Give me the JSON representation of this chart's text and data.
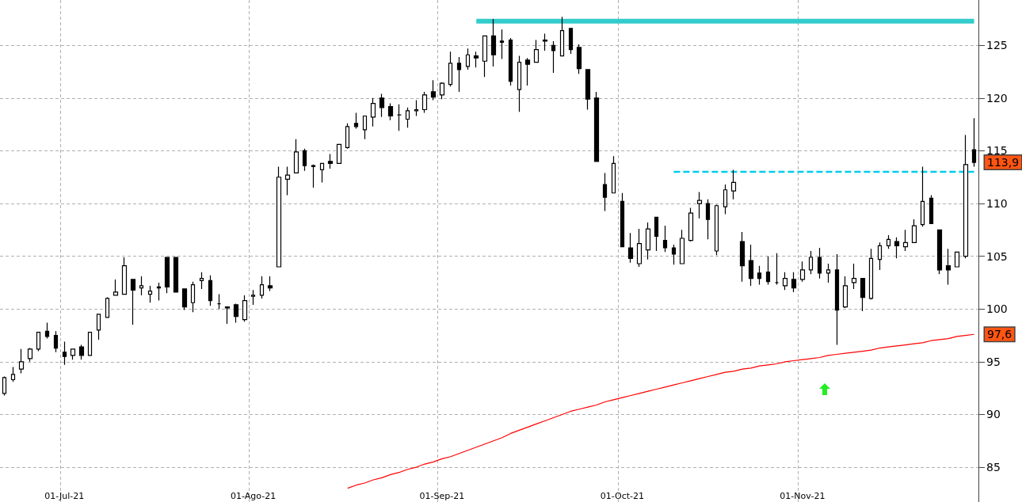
{
  "chart_data": {
    "type": "candlestick",
    "categories": [
      null,
      null,
      null,
      null,
      null,
      null,
      null,
      "01-Jul-21",
      null,
      null,
      null,
      null,
      null,
      null,
      null,
      null,
      null,
      null,
      null,
      null,
      null,
      null,
      null,
      null,
      null,
      null,
      null,
      null,
      null,
      "01-Ago-21",
      null,
      null,
      null,
      null,
      null,
      null,
      null,
      null,
      null,
      null,
      null,
      null,
      null,
      null,
      null,
      null,
      null,
      null,
      null,
      null,
      null,
      "01-Sep-21",
      null,
      null,
      null,
      null,
      null,
      null,
      null,
      null,
      null,
      null,
      null,
      null,
      null,
      null,
      null,
      null,
      null,
      null,
      null,
      null,
      "01-Oct-21",
      null,
      null,
      null,
      null,
      null,
      null,
      null,
      null,
      null,
      null,
      null,
      null,
      null,
      null,
      null,
      null,
      null,
      null,
      null,
      null,
      "01-Nov-21",
      null,
      null,
      null,
      null,
      null,
      null,
      null,
      null,
      null,
      null,
      null,
      null,
      null,
      null,
      null,
      null,
      null,
      null,
      null,
      null
    ],
    "ohlc": [
      [
        92.0,
        93.6,
        91.8,
        93.5
      ],
      [
        93.3,
        94.5,
        93.1,
        93.8
      ],
      [
        94.3,
        96.2,
        93.9,
        95.0
      ],
      [
        95.3,
        96.3,
        95.0,
        96.2
      ],
      [
        96.2,
        97.8,
        96.0,
        97.8
      ],
      [
        97.9,
        98.7,
        97.2,
        97.4
      ],
      [
        97.5,
        97.9,
        95.9,
        96.3
      ],
      [
        95.9,
        96.9,
        94.7,
        95.5
      ],
      [
        95.6,
        96.2,
        95.2,
        96.2
      ],
      [
        96.4,
        96.6,
        95.2,
        95.6
      ],
      [
        95.6,
        97.8,
        95.6,
        97.8
      ],
      [
        98.0,
        99.5,
        97.1,
        99.5
      ],
      [
        99.2,
        101.1,
        99.2,
        101.0
      ],
      [
        101.3,
        102.8,
        101.3,
        101.6
      ],
      [
        101.4,
        104.9,
        101.4,
        104.1
      ],
      [
        102.8,
        102.8,
        98.5,
        101.8
      ],
      [
        102.0,
        103.1,
        101.3,
        102.2
      ],
      [
        101.4,
        102.2,
        100.6,
        101.7
      ],
      [
        102.0,
        102.5,
        100.8,
        102.1
      ],
      [
        104.9,
        104.9,
        101.5,
        102.1
      ],
      [
        104.9,
        104.9,
        101.6,
        101.6
      ],
      [
        101.9,
        101.9,
        99.9,
        100.2
      ],
      [
        100.6,
        102.6,
        99.7,
        102.3
      ],
      [
        102.7,
        103.5,
        101.9,
        102.9
      ],
      [
        102.7,
        103.2,
        100.3,
        100.8
      ],
      [
        100.5,
        101.4,
        100.0,
        100.5
      ],
      [
        100.2,
        100.2,
        98.6,
        100.1
      ],
      [
        100.4,
        100.5,
        98.7,
        99.3
      ],
      [
        99.0,
        101.3,
        98.8,
        100.8
      ],
      [
        101.2,
        101.8,
        100.4,
        101.3
      ],
      [
        101.3,
        103.1,
        101.0,
        102.3
      ],
      [
        102.2,
        103.1,
        101.7,
        102.0
      ],
      [
        104.0,
        113.5,
        104.0,
        112.5
      ],
      [
        112.3,
        113.5,
        110.8,
        112.7
      ],
      [
        112.9,
        116.1,
        112.9,
        114.9
      ],
      [
        115.0,
        115.2,
        113.1,
        113.6
      ],
      [
        113.6,
        113.7,
        111.5,
        113.5
      ],
      [
        113.2,
        113.8,
        112.0,
        113.8
      ],
      [
        114.0,
        114.7,
        113.3,
        113.8
      ],
      [
        113.8,
        115.6,
        113.8,
        115.6
      ],
      [
        115.3,
        117.6,
        115.2,
        117.3
      ],
      [
        117.6,
        118.6,
        117.1,
        117.3
      ],
      [
        117.0,
        118.3,
        116.1,
        118.3
      ],
      [
        118.2,
        120.0,
        117.3,
        119.5
      ],
      [
        120.0,
        120.4,
        118.2,
        119.1
      ],
      [
        119.2,
        119.5,
        117.9,
        118.3
      ],
      [
        118.4,
        119.4,
        116.9,
        118.4
      ],
      [
        118.0,
        119.1,
        117.2,
        118.8
      ],
      [
        118.8,
        119.8,
        118.3,
        118.9
      ],
      [
        118.9,
        120.6,
        118.6,
        120.3
      ],
      [
        120.6,
        121.7,
        119.8,
        120.1
      ],
      [
        120.3,
        121.5,
        119.9,
        121.4
      ],
      [
        121.3,
        124.4,
        121.1,
        123.3
      ],
      [
        123.3,
        123.9,
        120.6,
        122.7
      ],
      [
        123.0,
        124.7,
        122.7,
        124.1
      ],
      [
        124.0,
        124.4,
        122.9,
        123.8
      ],
      [
        123.5,
        125.9,
        122.0,
        125.9
      ],
      [
        125.9,
        127.5,
        123.0,
        124.1
      ],
      [
        125.4,
        126.5,
        123.7,
        125.3
      ],
      [
        125.5,
        125.7,
        121.2,
        121.6
      ],
      [
        120.8,
        124.0,
        118.7,
        123.4
      ],
      [
        123.6,
        123.8,
        121.2,
        123.2
      ],
      [
        123.4,
        125.5,
        123.4,
        124.6
      ],
      [
        125.4,
        126.1,
        124.5,
        125.5
      ],
      [
        125.0,
        125.4,
        122.4,
        124.5
      ],
      [
        124.0,
        127.7,
        124.0,
        126.4
      ],
      [
        126.6,
        126.6,
        124.2,
        124.6
      ],
      [
        124.8,
        125.1,
        122.3,
        122.8
      ],
      [
        122.7,
        122.7,
        118.9,
        119.9
      ],
      [
        120.0,
        120.6,
        114.0,
        114.0
      ],
      [
        111.8,
        112.9,
        109.3,
        110.6
      ],
      [
        111.0,
        114.5,
        111.0,
        113.8
      ],
      [
        110.2,
        111.0,
        105.9,
        105.9
      ],
      [
        105.8,
        107.2,
        104.4,
        104.8
      ],
      [
        104.3,
        107.6,
        104.0,
        106.2
      ],
      [
        105.6,
        108.2,
        104.7,
        107.6
      ],
      [
        108.7,
        108.7,
        105.5,
        106.9
      ],
      [
        106.5,
        107.9,
        105.4,
        105.8
      ],
      [
        105.8,
        106.1,
        104.2,
        105.2
      ],
      [
        104.3,
        107.5,
        104.3,
        106.7
      ],
      [
        106.5,
        109.6,
        106.4,
        109.1
      ],
      [
        110.0,
        111.1,
        108.6,
        110.3
      ],
      [
        110.0,
        110.4,
        106.6,
        108.5
      ],
      [
        105.5,
        109.9,
        105.1,
        109.8
      ],
      [
        109.7,
        111.8,
        109.0,
        111.3
      ],
      [
        111.2,
        113.2,
        110.4,
        112.0
      ],
      [
        106.4,
        107.3,
        102.6,
        104.1
      ],
      [
        104.6,
        106.1,
        102.2,
        102.9
      ],
      [
        103.4,
        104.1,
        102.3,
        102.9
      ],
      [
        103.5,
        105.0,
        102.3,
        102.6
      ],
      [
        102.5,
        105.3,
        102.3,
        102.5
      ],
      [
        102.2,
        103.5,
        101.8,
        102.9
      ],
      [
        102.8,
        103.5,
        101.6,
        102.0
      ],
      [
        102.8,
        104.5,
        102.6,
        103.7
      ],
      [
        103.7,
        105.5,
        103.3,
        104.9
      ],
      [
        104.9,
        105.8,
        102.9,
        103.4
      ],
      [
        103.4,
        104.3,
        102.5,
        103.7
      ],
      [
        103.7,
        105.2,
        96.6,
        99.9
      ],
      [
        100.2,
        103.1,
        100.1,
        102.2
      ],
      [
        102.5,
        104.3,
        101.9,
        102.9
      ],
      [
        102.9,
        102.9,
        99.8,
        101.1
      ],
      [
        101.0,
        105.7,
        100.9,
        104.8
      ],
      [
        104.7,
        106.3,
        103.7,
        106.0
      ],
      [
        106.0,
        107.0,
        105.7,
        106.6
      ],
      [
        106.4,
        106.8,
        104.8,
        106.0
      ],
      [
        105.9,
        107.5,
        105.5,
        106.3
      ],
      [
        106.3,
        108.5,
        106.3,
        107.9
      ],
      [
        108.0,
        113.5,
        107.8,
        110.2
      ],
      [
        110.5,
        110.8,
        108.1,
        108.1
      ],
      [
        107.5,
        107.5,
        103.3,
        103.7
      ],
      [
        104.1,
        105.7,
        102.3,
        103.7
      ],
      [
        104.0,
        105.4,
        104.0,
        105.4
      ],
      [
        105.0,
        116.5,
        104.8,
        113.7
      ],
      [
        115.1,
        118.1,
        113.5,
        113.9
      ]
    ],
    "series": [
      {
        "type": "line",
        "color": "#ff0000",
        "values": [
          null,
          null,
          null,
          null,
          null,
          null,
          null,
          null,
          null,
          null,
          null,
          null,
          null,
          null,
          null,
          null,
          null,
          null,
          null,
          null,
          null,
          null,
          null,
          null,
          null,
          null,
          null,
          null,
          null,
          null,
          null,
          null,
          null,
          null,
          null,
          null,
          null,
          null,
          null,
          null,
          83.0,
          83.3,
          83.5,
          83.8,
          84.0,
          84.3,
          84.5,
          84.8,
          85.0,
          85.3,
          85.5,
          85.8,
          86.0,
          86.3,
          86.6,
          86.9,
          87.2,
          87.5,
          87.8,
          88.2,
          88.5,
          88.8,
          89.1,
          89.4,
          89.7,
          90.0,
          90.3,
          90.5,
          90.7,
          90.9,
          91.2,
          91.4,
          91.6,
          91.8,
          92.0,
          92.2,
          92.4,
          92.6,
          92.8,
          93.0,
          93.2,
          93.4,
          93.6,
          93.8,
          94.0,
          94.1,
          94.3,
          94.4,
          94.6,
          94.7,
          94.8,
          95.0,
          95.1,
          95.2,
          95.3,
          95.4,
          95.6,
          95.7,
          95.8,
          95.9,
          96.0,
          96.1,
          96.3,
          96.4,
          96.5,
          96.6,
          96.7,
          96.8,
          97.0,
          97.1,
          97.2,
          97.4,
          97.5,
          97.6
        ]
      },
      {
        "type": "line",
        "color": "#33cccc",
        "values": [
          null,
          null,
          null,
          null,
          null,
          null,
          null,
          null,
          null,
          null,
          null,
          null,
          null,
          null,
          null,
          null,
          null,
          null,
          null,
          null,
          null,
          null,
          null,
          null,
          null,
          null,
          null,
          null,
          null,
          null,
          null,
          null,
          null,
          null,
          null,
          null,
          null,
          null,
          null,
          null,
          null,
          null,
          null,
          null,
          null,
          null,
          null,
          null,
          null,
          null,
          null,
          null,
          null,
          null,
          null,
          127.3,
          127.3,
          127.3,
          127.3,
          127.3,
          127.3,
          127.3,
          127.3,
          127.3,
          127.3,
          127.3,
          127.3,
          127.3,
          127.3,
          127.3,
          127.3,
          127.3,
          127.3,
          127.3,
          127.3,
          127.3,
          127.3,
          127.3,
          127.3,
          127.3,
          127.3,
          127.3,
          127.3,
          127.3,
          127.3,
          127.3,
          127.3,
          127.3,
          127.3,
          127.3,
          127.3,
          127.3,
          127.3,
          127.3,
          127.3,
          127.3,
          127.3,
          127.3,
          127.3,
          127.3,
          127.3,
          127.3,
          127.3,
          127.3,
          127.3,
          127.3,
          127.3,
          127.3,
          127.3,
          127.3,
          127.3,
          127.3,
          127.3,
          127.3
        ]
      },
      {
        "type": "line",
        "color": "#00ccee",
        "line_style": "dashed",
        "values": [
          null,
          null,
          null,
          null,
          null,
          null,
          null,
          null,
          null,
          null,
          null,
          null,
          null,
          null,
          null,
          null,
          null,
          null,
          null,
          null,
          null,
          null,
          null,
          null,
          null,
          null,
          null,
          null,
          null,
          null,
          null,
          null,
          null,
          null,
          null,
          null,
          null,
          null,
          null,
          null,
          null,
          null,
          null,
          null,
          null,
          null,
          null,
          null,
          null,
          null,
          null,
          null,
          null,
          null,
          null,
          null,
          null,
          null,
          null,
          null,
          null,
          null,
          null,
          null,
          null,
          null,
          null,
          null,
          null,
          null,
          null,
          null,
          null,
          null,
          null,
          null,
          null,
          null,
          113.0,
          113.0,
          113.0,
          113.0,
          113.0,
          113.0,
          113.0,
          113.0,
          113.0,
          113.0,
          113.0,
          113.0,
          113.0,
          113.0,
          113.0,
          113.0,
          113.0,
          113.0,
          113.0,
          113.0,
          113.0,
          113.0,
          113.0,
          113.0,
          113.0,
          113.0,
          113.0,
          113.0,
          113.0,
          113.0,
          113.0,
          113.0,
          113.0,
          113.0,
          113.0,
          113.0
        ]
      }
    ],
    "ylim": [
      81.7,
      129.3
    ],
    "yticks": [
      85,
      90,
      95,
      100,
      105,
      110,
      115,
      120,
      125
    ],
    "annotations": [
      "113,9",
      "97,6"
    ],
    "grid": true,
    "marker": "none"
  }
}
